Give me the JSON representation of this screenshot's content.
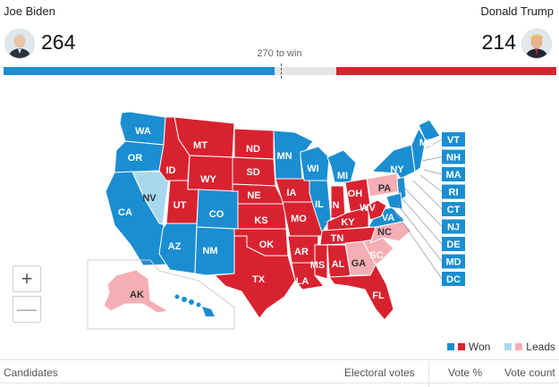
{
  "candidates": {
    "left": {
      "name": "Joe Biden",
      "electoral_votes": "264",
      "color": "#1a8ed1"
    },
    "right": {
      "name": "Donald Trump",
      "electoral_votes": "214",
      "color": "#d9222f"
    }
  },
  "threshold_label": "270 to win",
  "tally": {
    "total": 538,
    "left": 264,
    "right": 214,
    "threshold": 270
  },
  "colors": {
    "won_blue": "#1a8ed1",
    "won_red": "#d9222f",
    "lead_blue": "#a8d8ee",
    "lead_red": "#f4aeb4",
    "other": "#c9c9c9"
  },
  "map": {
    "labels": [
      {
        "abbr": "WA",
        "status": "won_blue"
      },
      {
        "abbr": "OR",
        "status": "won_blue"
      },
      {
        "abbr": "CA",
        "status": "won_blue"
      },
      {
        "abbr": "NV",
        "status": "lead_blue"
      },
      {
        "abbr": "ID",
        "status": "won_red"
      },
      {
        "abbr": "MT",
        "status": "won_red"
      },
      {
        "abbr": "WY",
        "status": "won_red"
      },
      {
        "abbr": "UT",
        "status": "won_red"
      },
      {
        "abbr": "CO",
        "status": "won_blue"
      },
      {
        "abbr": "AZ",
        "status": "won_blue"
      },
      {
        "abbr": "NM",
        "status": "won_blue"
      },
      {
        "abbr": "ND",
        "status": "won_red"
      },
      {
        "abbr": "SD",
        "status": "won_red"
      },
      {
        "abbr": "NE",
        "status": "won_red"
      },
      {
        "abbr": "KS",
        "status": "won_red"
      },
      {
        "abbr": "OK",
        "status": "won_red"
      },
      {
        "abbr": "TX",
        "status": "won_red"
      },
      {
        "abbr": "MN",
        "status": "won_blue"
      },
      {
        "abbr": "IA",
        "status": "won_red"
      },
      {
        "abbr": "MO",
        "status": "won_red"
      },
      {
        "abbr": "AR",
        "status": "won_red"
      },
      {
        "abbr": "LA",
        "status": "won_red"
      },
      {
        "abbr": "WI",
        "status": "won_blue"
      },
      {
        "abbr": "IL",
        "status": "won_blue"
      },
      {
        "abbr": "MI",
        "status": "won_blue"
      },
      {
        "abbr": "IN",
        "status": "won_red"
      },
      {
        "abbr": "OH",
        "status": "won_red"
      },
      {
        "abbr": "KY",
        "status": "won_red"
      },
      {
        "abbr": "TN",
        "status": "won_red"
      },
      {
        "abbr": "MS",
        "status": "won_red"
      },
      {
        "abbr": "AL",
        "status": "won_red"
      },
      {
        "abbr": "GA",
        "status": "lead_red"
      },
      {
        "abbr": "FL",
        "status": "won_red"
      },
      {
        "abbr": "SC",
        "status": "won_red"
      },
      {
        "abbr": "NC",
        "status": "lead_red"
      },
      {
        "abbr": "VA",
        "status": "won_blue"
      },
      {
        "abbr": "WV",
        "status": "won_red"
      },
      {
        "abbr": "PA",
        "status": "lead_red"
      },
      {
        "abbr": "NY",
        "status": "won_blue"
      },
      {
        "abbr": "ME",
        "status": "won_blue"
      },
      {
        "abbr": "AK",
        "status": "lead_red"
      },
      {
        "abbr": "HI",
        "status": "won_blue"
      }
    ],
    "small_states": [
      "VT",
      "NH",
      "MA",
      "RI",
      "CT",
      "NJ",
      "DE",
      "MD",
      "DC"
    ]
  },
  "zoom": {
    "in": "+",
    "out": "—"
  },
  "legend": {
    "won": "Won",
    "leads": "Leads"
  },
  "table": {
    "headers": {
      "candidates": "Candidates",
      "electoral_votes": "Electoral votes",
      "vote_pct": "Vote %",
      "vote_count": "Vote count"
    }
  }
}
